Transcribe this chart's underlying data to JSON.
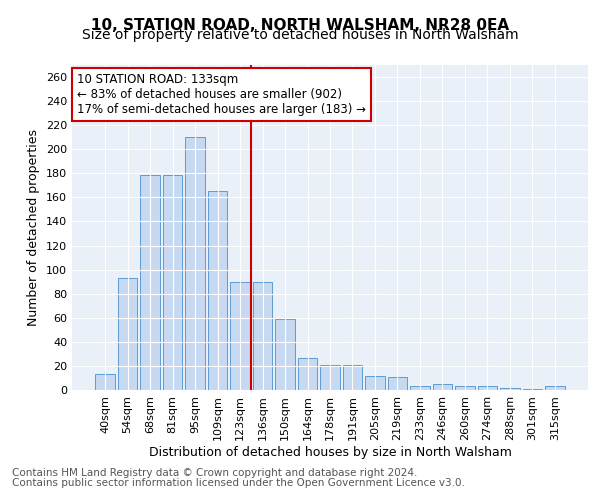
{
  "title1": "10, STATION ROAD, NORTH WALSHAM, NR28 0EA",
  "title2": "Size of property relative to detached houses in North Walsham",
  "xlabel": "Distribution of detached houses by size in North Walsham",
  "ylabel": "Number of detached properties",
  "footnote1": "Contains HM Land Registry data © Crown copyright and database right 2024.",
  "footnote2": "Contains public sector information licensed under the Open Government Licence v3.0.",
  "categories": [
    "40sqm",
    "54sqm",
    "68sqm",
    "81sqm",
    "95sqm",
    "109sqm",
    "123sqm",
    "136sqm",
    "150sqm",
    "164sqm",
    "178sqm",
    "191sqm",
    "205sqm",
    "219sqm",
    "233sqm",
    "246sqm",
    "260sqm",
    "274sqm",
    "288sqm",
    "301sqm",
    "315sqm"
  ],
  "values": [
    13,
    93,
    179,
    179,
    210,
    165,
    90,
    90,
    59,
    27,
    21,
    21,
    12,
    11,
    3,
    5,
    3,
    3,
    2,
    1,
    3
  ],
  "bar_color": "#c6d9f0",
  "bar_edge_color": "#5b9bd5",
  "vline_color": "#cc0000",
  "annotation_text": "10 STATION ROAD: 133sqm\n← 83% of detached houses are smaller (902)\n17% of semi-detached houses are larger (183) →",
  "annotation_box_color": "#ffffff",
  "annotation_box_edge_color": "#cc0000",
  "ylim": [
    0,
    270
  ],
  "yticks": [
    0,
    20,
    40,
    60,
    80,
    100,
    120,
    140,
    160,
    180,
    200,
    220,
    240,
    260
  ],
  "bg_color": "#eaf0f8",
  "title1_fontsize": 11,
  "title2_fontsize": 10,
  "annotation_fontsize": 8.5,
  "axis_fontsize": 8,
  "xlabel_fontsize": 9,
  "ylabel_fontsize": 9,
  "footnote_fontsize": 7.5
}
